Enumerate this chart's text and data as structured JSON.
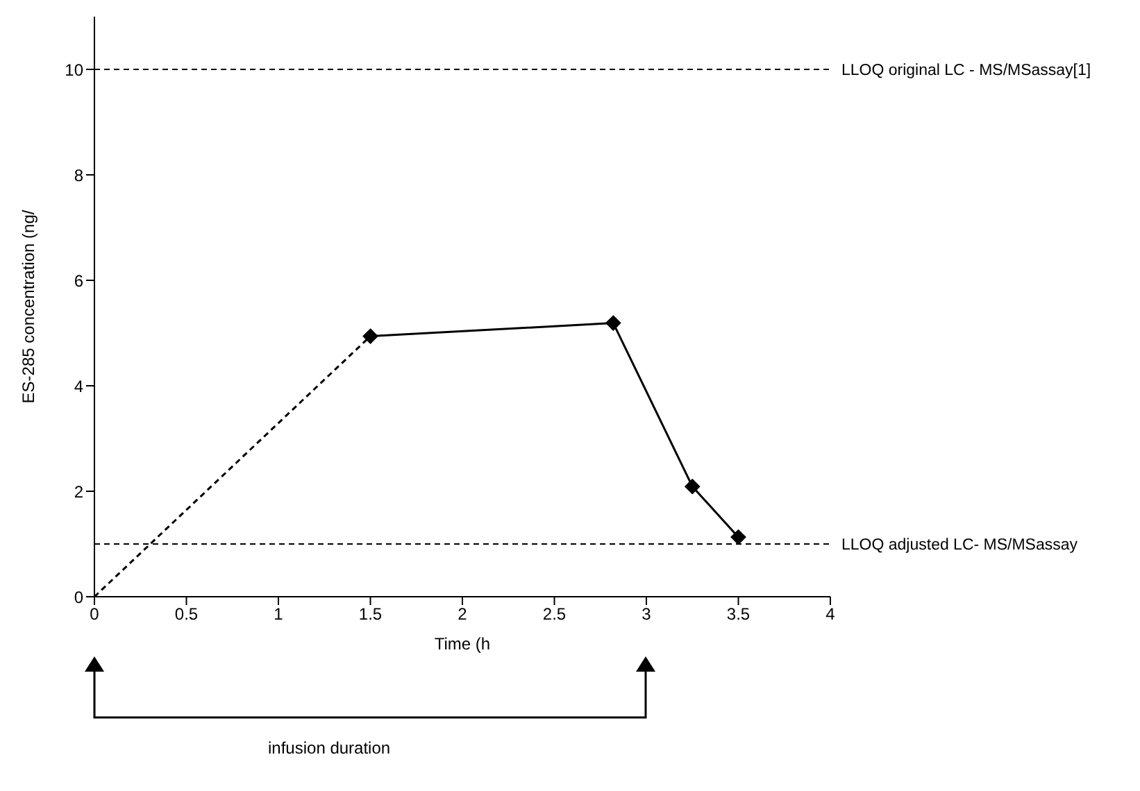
{
  "chart_data": {
    "type": "line",
    "xlabel": "Time (h",
    "ylabel": "ES-285 concentration (ng/",
    "xlim": [
      0,
      4
    ],
    "xticks": [
      0,
      0.5,
      1,
      1.5,
      2,
      2.5,
      3,
      3.5,
      4
    ],
    "ylim": [
      0,
      11
    ],
    "yticks": [
      0,
      2,
      4,
      6,
      8,
      10
    ],
    "grid": false,
    "series": [
      {
        "color": "#000000",
        "x": [
          0,
          1.5
        ],
        "values": [
          0,
          4.94
        ],
        "line_style": "dashed"
      },
      {
        "color": "#000000",
        "x": [
          1.5,
          2.82,
          3.25,
          3.5
        ],
        "values": [
          4.94,
          5.19,
          2.09,
          1.13
        ],
        "line_style": "solid",
        "marker": "diamond"
      }
    ],
    "ref_lines": [
      {
        "axis": "y",
        "value": 10,
        "label": "LLOQ original  LC - MS/MSassay[1]",
        "color": "#000000",
        "line_style": "dashed"
      },
      {
        "axis": "y",
        "value": 1,
        "label": "LLOQ adjusted LC- MS/MSassay",
        "color": "#000000",
        "line_style": "dashed"
      }
    ],
    "annotations": [
      "infusion duration"
    ]
  }
}
